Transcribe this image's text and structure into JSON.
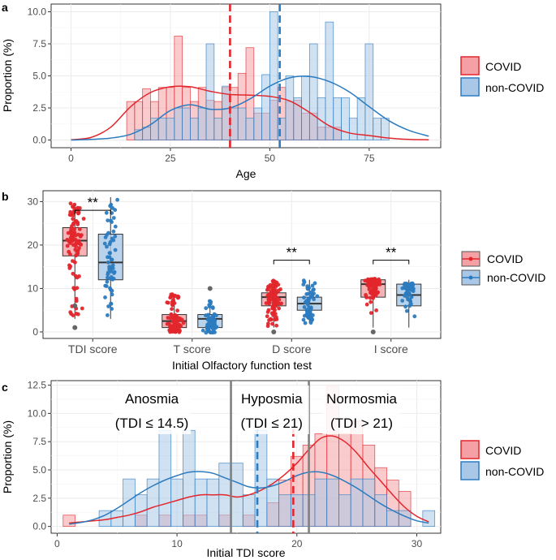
{
  "colors": {
    "covid_line": "#e2262c",
    "covid_fill": "#f4a0a4",
    "noncovid_line": "#2c7bbf",
    "noncovid_fill": "#a9c8e8",
    "panel_bg": "#ffffff",
    "grid": "#ebebeb",
    "axis_text": "#4d4d4d",
    "gray_line": "#7f7f7f"
  },
  "chart_data": [
    {
      "panel": "a",
      "type": "histogram+density",
      "xlabel": "Age",
      "ylabel": "Proportion (%)",
      "xlim": [
        -5,
        93
      ],
      "ylim": [
        -0.6,
        10.6
      ],
      "x_ticks": [
        0,
        25,
        50,
        75
      ],
      "y_ticks": [
        0.0,
        2.5,
        5.0,
        7.5,
        10.0
      ],
      "y_tick_labels": [
        "0.0",
        "2.5",
        "5.0",
        "7.5",
        "10.0"
      ],
      "bin_width": 2,
      "legend": [
        "COVID",
        "non-COVID"
      ],
      "mean_lines": [
        {
          "group": "COVID",
          "x": 40
        },
        {
          "group": "non-COVID",
          "x": 52.5
        }
      ],
      "series": [
        {
          "name": "COVID",
          "bins_start": 14,
          "values": [
            3.0,
            3.0,
            4.0,
            3.0,
            4.1,
            4.1,
            8.1,
            4.1,
            3.0,
            4.1,
            3.1,
            3.0,
            4.1,
            4.1,
            5.2,
            7.2,
            2.1,
            2.1,
            3.1,
            4.1,
            3.0,
            3.1,
            2.1,
            2.1,
            1.0,
            1.0,
            1.0
          ]
        },
        {
          "name": "non-COVID",
          "bins_start": 16,
          "values": [
            0.8,
            1.0,
            1.7,
            1.7,
            1.7,
            2.5,
            2.5,
            1.7,
            2.5,
            7.5,
            1.7,
            4.2,
            2.5,
            2.5,
            1.7,
            2.5,
            5.1,
            10.0,
            1.7,
            5.0,
            3.3,
            5.0,
            7.5,
            3.3,
            9.2,
            3.3,
            3.3,
            1.7,
            3.3,
            7.5,
            1.7,
            1.7
          ]
        }
      ],
      "density": [
        {
          "name": "COVID",
          "x": [
            0,
            5,
            10,
            15,
            20,
            25,
            30,
            35,
            40,
            45,
            50,
            55,
            60,
            65,
            70,
            75,
            80,
            85,
            90
          ],
          "y": [
            0.02,
            0.2,
            1.0,
            2.6,
            3.7,
            4.15,
            4.15,
            3.8,
            3.55,
            3.5,
            3.4,
            3.05,
            2.15,
            1.1,
            0.55,
            0.35,
            0.15,
            0.05,
            0.02
          ]
        },
        {
          "name": "non-COVID",
          "x": [
            0,
            5,
            10,
            15,
            20,
            25,
            30,
            35,
            40,
            45,
            50,
            55,
            60,
            65,
            70,
            75,
            80,
            85,
            90
          ],
          "y": [
            0.0,
            0.05,
            0.15,
            0.45,
            1.2,
            2.3,
            2.75,
            2.4,
            2.5,
            3.2,
            4.2,
            4.85,
            4.95,
            4.55,
            3.75,
            2.6,
            1.5,
            0.75,
            0.3
          ]
        }
      ]
    },
    {
      "panel": "b",
      "type": "boxplot+jitter",
      "xlabel": "Initial Olfactory function test",
      "ylabel": "",
      "ylim": [
        -1.5,
        32.5
      ],
      "y_ticks": [
        0,
        10,
        20,
        30
      ],
      "y_tick_labels": [
        "0",
        "10",
        "20",
        "30"
      ],
      "categories": [
        "TDI score",
        "T score",
        "D score",
        "I score"
      ],
      "legend": [
        "COVID",
        "non-COVID"
      ],
      "significance": [
        {
          "category": "TDI score",
          "label": "**",
          "y": 28
        },
        {
          "category": "D score",
          "label": "**",
          "y": 16.5
        },
        {
          "category": "I score",
          "label": "**",
          "y": 16.5
        }
      ],
      "boxes": [
        {
          "category": "TDI score",
          "group": "COVID",
          "n": 95,
          "whisker_low": 3,
          "q1": 17.5,
          "median": 21,
          "q3": 24,
          "whisker_high": 29.5,
          "outliers": [
            1,
            6
          ]
        },
        {
          "category": "TDI score",
          "group": "non-COVID",
          "n": 60,
          "whisker_low": 3,
          "q1": 12,
          "median": 16,
          "q3": 22.5,
          "whisker_high": 31,
          "outliers": []
        },
        {
          "category": "T score",
          "group": "COVID",
          "n": 95,
          "whisker_low": 0,
          "q1": 1,
          "median": 2.5,
          "q3": 4,
          "whisker_high": 8.5,
          "outliers": []
        },
        {
          "category": "T score",
          "group": "non-COVID",
          "n": 60,
          "whisker_low": 0,
          "q1": 1,
          "median": 3,
          "q3": 4,
          "whisker_high": 7.5,
          "outliers": [
            10
          ]
        },
        {
          "category": "D score",
          "group": "COVID",
          "n": 95,
          "whisker_low": 1,
          "q1": 6,
          "median": 8,
          "q3": 9,
          "whisker_high": 12,
          "outliers": [
            0
          ]
        },
        {
          "category": "D score",
          "group": "non-COVID",
          "n": 60,
          "whisker_low": 2,
          "q1": 5,
          "median": 6.5,
          "q3": 8,
          "whisker_high": 12,
          "outliers": []
        },
        {
          "category": "I score",
          "group": "COVID",
          "n": 95,
          "whisker_low": 1,
          "q1": 8,
          "median": 11,
          "q3": 12,
          "whisker_high": 12,
          "outliers": [
            0
          ]
        },
        {
          "category": "I score",
          "group": "non-COVID",
          "n": 60,
          "whisker_low": 1,
          "q1": 6,
          "median": 8.5,
          "q3": 11,
          "whisker_high": 12,
          "outliers": []
        }
      ]
    },
    {
      "panel": "c",
      "type": "histogram+density",
      "xlabel": "Initial TDI score",
      "ylabel": "Proportion (%)",
      "xlim": [
        -0.5,
        32.0
      ],
      "ylim": [
        -0.6,
        12.9
      ],
      "x_ticks": [
        0,
        10,
        20,
        30
      ],
      "y_ticks": [
        0.0,
        2.5,
        5.0,
        7.5,
        10.0,
        12.5
      ],
      "y_tick_labels": [
        "0.0",
        "2.5",
        "5.0",
        "7.5",
        "10.0",
        "12.5"
      ],
      "bin_width": 1,
      "legend": [
        "COVID",
        "non-COVID"
      ],
      "thresholds": [
        14.5,
        21
      ],
      "mean_lines": [
        {
          "group": "COVID",
          "x": 19.7
        },
        {
          "group": "non-COVID",
          "x": 16.7
        }
      ],
      "regions": [
        {
          "name": "Anosmia",
          "criterion": "(TDI ≤ 14.5)"
        },
        {
          "name": "Hyposmia",
          "criterion": "(TDI ≤ 21)"
        },
        {
          "name": "Normosmia",
          "criterion": "(TDI > 21)"
        }
      ],
      "series": [
        {
          "name": "COVID",
          "bins_start": 0.5,
          "values": [
            1.0,
            0,
            0,
            0,
            0,
            0,
            1.0,
            0,
            1.0,
            0,
            1.0,
            1.0,
            0,
            1.0,
            0,
            1.0,
            0,
            2.1,
            4.1,
            6.2,
            7.2,
            8.2,
            12.4,
            8.2,
            9.3,
            7.2,
            5.2,
            4.1,
            3.1,
            0,
            0
          ]
        },
        {
          "name": "non-COVID",
          "bins_start": 3.5,
          "values": [
            1.4,
            1.4,
            4.2,
            2.8,
            4.2,
            8.5,
            4.2,
            8.5,
            4.2,
            4.2,
            5.6,
            5.6,
            2.8,
            8.5,
            4.2,
            2.8,
            2.8,
            2.8,
            4.2,
            4.2,
            2.8,
            4.2,
            4.2,
            2.8,
            1.4,
            1.4,
            0,
            1.4
          ]
        }
      ],
      "density": [
        {
          "name": "COVID",
          "x": [
            1,
            2,
            3,
            4,
            5,
            6,
            7,
            8,
            9,
            10,
            11,
            12,
            13,
            14,
            15,
            16,
            17,
            18,
            19,
            20,
            21,
            22,
            23,
            24,
            25,
            26,
            27,
            28,
            29,
            30,
            31
          ],
          "y": [
            0.3,
            0.4,
            0.5,
            0.6,
            0.8,
            1.0,
            1.3,
            1.7,
            2.0,
            2.3,
            2.6,
            2.8,
            2.8,
            2.8,
            2.6,
            2.8,
            3.2,
            3.8,
            4.6,
            5.6,
            6.8,
            7.8,
            8.0,
            7.5,
            6.5,
            5.2,
            4.0,
            2.8,
            1.7,
            0.9,
            0.4
          ]
        },
        {
          "name": "non-COVID",
          "x": [
            1,
            2,
            3,
            4,
            5,
            6,
            7,
            8,
            9,
            10,
            11,
            12,
            13,
            14,
            15,
            16,
            17,
            18,
            19,
            20,
            21,
            22,
            23,
            24,
            25,
            26,
            27,
            28,
            29,
            30,
            31
          ],
          "y": [
            0.2,
            0.35,
            0.6,
            1.0,
            1.6,
            2.3,
            3.0,
            3.6,
            4.1,
            4.5,
            4.8,
            4.85,
            4.7,
            4.3,
            3.9,
            3.5,
            3.4,
            3.6,
            4.0,
            4.5,
            4.8,
            4.8,
            4.5,
            4.0,
            3.4,
            2.7,
            2.0,
            1.4,
            0.9,
            0.5,
            0.3
          ]
        }
      ]
    }
  ],
  "panels": {
    "a": {
      "label": "a",
      "ylabel": "Proportion (%)",
      "xlabel": "Age",
      "legend": {
        "covid": "COVID",
        "noncovid": "non-COVID"
      }
    },
    "b": {
      "label": "b",
      "xlabel": "Initial Olfactory function test",
      "legend": {
        "covid": "COVID",
        "noncovid": "non-COVID"
      },
      "sig": "**"
    },
    "c": {
      "label": "c",
      "ylabel": "Proportion (%)",
      "xlabel": "Initial TDI score",
      "legend": {
        "covid": "COVID",
        "noncovid": "non-COVID"
      }
    }
  }
}
